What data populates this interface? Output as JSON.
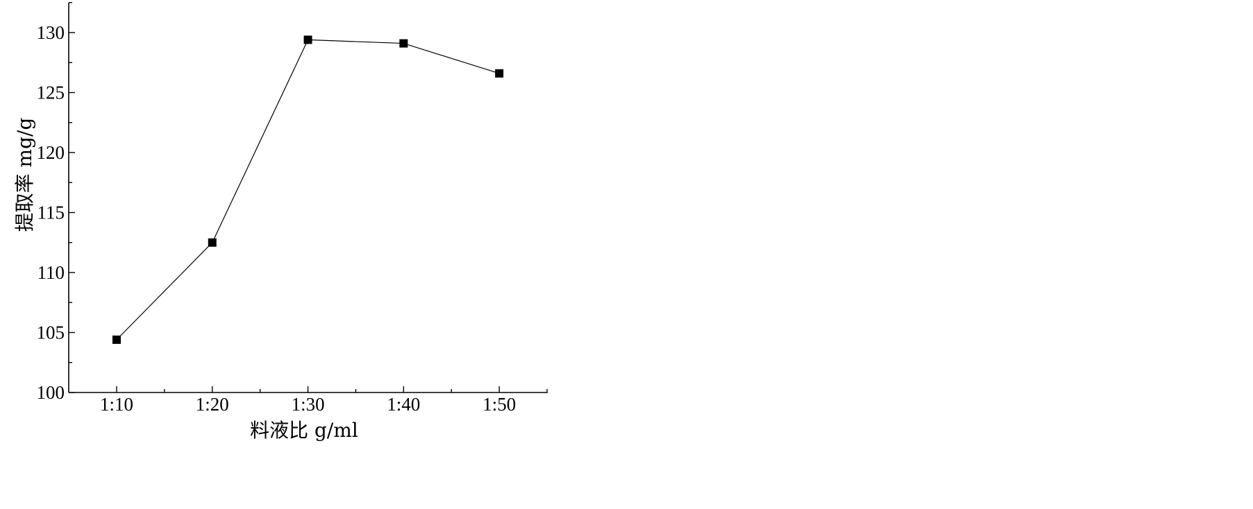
{
  "chart_data": {
    "type": "line",
    "title": "",
    "xlabel": "料液比 g/ml",
    "ylabel": "提取率  mg/g",
    "categories": [
      "1:10",
      "1:20",
      "1:30",
      "1:40",
      "1:50"
    ],
    "series": [
      {
        "values": [
          104.4,
          112.5,
          129.4,
          129.1,
          126.6
        ],
        "marker": "square",
        "color": "#000000"
      }
    ],
    "ylim": [
      100,
      132.5
    ],
    "yticks": [
      100,
      105,
      110,
      115,
      120,
      125,
      130
    ],
    "grid": false,
    "legend": "none"
  }
}
